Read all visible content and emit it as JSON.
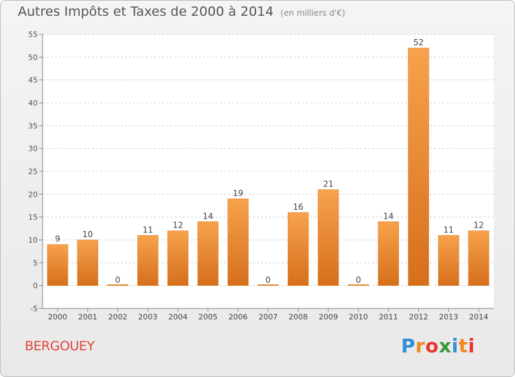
{
  "header": {
    "title": "Autres Impôts et Taxes de 2000 à 2014",
    "subtitle": "(en milliers d'€)"
  },
  "footer": {
    "commune": "BERGOUEY",
    "logo": "Proxiti"
  },
  "colors": {
    "bar_light": "#f7a24c",
    "bar_dark": "#d66f1c",
    "commune": "#e0443c",
    "logo_letters": [
      "#2e8fd6",
      "#f08a1c",
      "#e8372f",
      "#3a9a3a",
      "#2e8fd6",
      "#f08a1c",
      "#e8372f"
    ]
  },
  "chart_data": {
    "type": "bar",
    "title": "Autres Impôts et Taxes de 2000 à 2014",
    "subtitle": "(en milliers d'€)",
    "categories": [
      "2000",
      "2001",
      "2002",
      "2003",
      "2004",
      "2005",
      "2006",
      "2007",
      "2008",
      "2009",
      "2010",
      "2011",
      "2012",
      "2013",
      "2014"
    ],
    "values": [
      9,
      10,
      0,
      11,
      12,
      14,
      19,
      0,
      16,
      21,
      0,
      14,
      52,
      11,
      12
    ],
    "data_labels": [
      "9",
      "10",
      "0",
      "11",
      "12",
      "14",
      "19",
      "0",
      "16",
      "21",
      "0",
      "14",
      "52",
      "11",
      "12"
    ],
    "y_ticks": [
      "-5",
      "0",
      "5",
      "10",
      "15",
      "20",
      "25",
      "30",
      "35",
      "40",
      "45",
      "50",
      "55"
    ],
    "ylim": [
      -5,
      55
    ],
    "grid": "horizontal dashed",
    "legend": "none"
  }
}
